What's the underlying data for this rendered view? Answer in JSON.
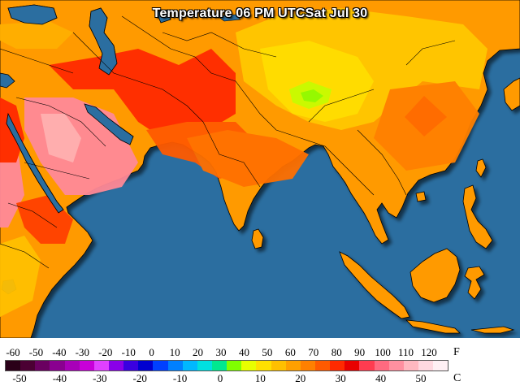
{
  "title": "Temperature 06 PM UTCSat Jul 30",
  "legend": {
    "f_unit": "F",
    "c_unit": "C",
    "f_ticks": [
      "-60",
      "-50",
      "-40",
      "-30",
      "-20",
      "-10",
      "0",
      "10",
      "20",
      "30",
      "40",
      "50",
      "60",
      "70",
      "80",
      "90",
      "100",
      "110",
      "120"
    ],
    "c_ticks": [
      "-50",
      "-40",
      "-30",
      "-20",
      "-10",
      "0",
      "10",
      "20",
      "30",
      "40",
      "50"
    ],
    "colors": [
      "#2a0018",
      "#4b0033",
      "#6a0060",
      "#8a0090",
      "#a800b8",
      "#c800d8",
      "#e040ff",
      "#8a00e8",
      "#3a00e0",
      "#0000d0",
      "#0040ff",
      "#0080ff",
      "#00b8ff",
      "#00e0e0",
      "#00e890",
      "#80ff00",
      "#e8ff00",
      "#ffe000",
      "#ffc000",
      "#ffa000",
      "#ff8000",
      "#ff5a00",
      "#ff2a00",
      "#e80000",
      "#ff3c50",
      "#ff6a80",
      "#ff90a0",
      "#ffb8c0",
      "#ffd8e0",
      "#fff0f4"
    ]
  },
  "map": {
    "ocean_color": "#2b6ea0",
    "land_base_color": "#ff9a00"
  }
}
